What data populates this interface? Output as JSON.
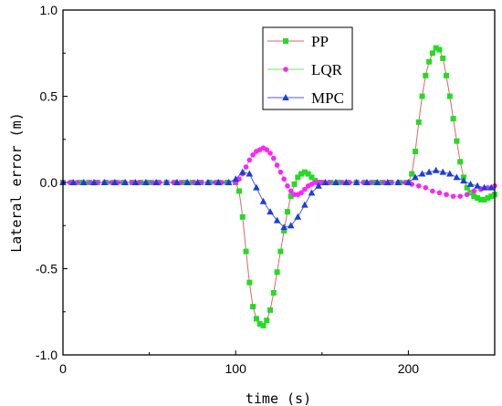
{
  "chart_data": {
    "type": "line",
    "xlabel": "time (s)",
    "ylabel": "Lateral error (m)",
    "xlim": [
      0,
      250
    ],
    "ylim": [
      -1.0,
      1.0
    ],
    "xticks": [
      0,
      100,
      200
    ],
    "xtick_labels": [
      "0",
      "100",
      "200"
    ],
    "yticks": [
      -1.0,
      -0.5,
      0.0,
      0.5,
      1.0
    ],
    "ytick_labels": [
      "-1.0",
      "-0.5",
      "0.0",
      "0.5",
      "1.0"
    ],
    "grid": false,
    "legend_position": "top-center",
    "series": [
      {
        "name": "PP",
        "line_color": "#e06666",
        "marker_color": "#22dd22",
        "marker": "square",
        "x": [
          0,
          5,
          10,
          15,
          20,
          25,
          30,
          35,
          40,
          45,
          50,
          55,
          60,
          65,
          70,
          75,
          80,
          85,
          90,
          95,
          100,
          102,
          104,
          106,
          108,
          110,
          112,
          114,
          116,
          118,
          120,
          122,
          124,
          126,
          128,
          130,
          132,
          134,
          136,
          138,
          140,
          142,
          144,
          146,
          148,
          150,
          155,
          160,
          165,
          170,
          175,
          180,
          185,
          190,
          195,
          200,
          202,
          204,
          206,
          208,
          210,
          212,
          214,
          216,
          218,
          220,
          222,
          224,
          226,
          228,
          230,
          232,
          234,
          236,
          238,
          240,
          242,
          244,
          246,
          248,
          250
        ],
        "y": [
          0,
          0,
          0,
          0,
          0,
          0,
          0,
          0,
          0,
          0,
          0,
          0,
          0,
          0,
          0,
          0,
          0,
          0,
          0,
          0,
          0,
          -0.05,
          -0.2,
          -0.4,
          -0.58,
          -0.72,
          -0.79,
          -0.82,
          -0.83,
          -0.8,
          -0.74,
          -0.64,
          -0.52,
          -0.4,
          -0.28,
          -0.17,
          -0.08,
          -0.01,
          0.03,
          0.05,
          0.06,
          0.05,
          0.03,
          0.01,
          0,
          0,
          0,
          0,
          0,
          0,
          0,
          0,
          0,
          0,
          0,
          0,
          0.05,
          0.18,
          0.35,
          0.5,
          0.62,
          0.7,
          0.75,
          0.78,
          0.77,
          0.72,
          0.62,
          0.5,
          0.37,
          0.24,
          0.12,
          0.03,
          -0.03,
          -0.06,
          -0.08,
          -0.09,
          -0.1,
          -0.1,
          -0.09,
          -0.08,
          -0.07
        ]
      },
      {
        "name": "LQR",
        "line_color": "#66ee66",
        "marker_color": "#ff22ff",
        "marker": "circle",
        "x": [
          0,
          4,
          8,
          12,
          16,
          20,
          24,
          28,
          32,
          36,
          40,
          44,
          48,
          52,
          56,
          60,
          64,
          68,
          72,
          76,
          80,
          84,
          88,
          92,
          96,
          100,
          102,
          104,
          106,
          108,
          110,
          112,
          114,
          116,
          118,
          120,
          122,
          124,
          126,
          128,
          130,
          132,
          134,
          136,
          138,
          140,
          142,
          144,
          146,
          148,
          150,
          154,
          158,
          162,
          166,
          170,
          174,
          178,
          182,
          186,
          190,
          194,
          198,
          202,
          206,
          210,
          214,
          218,
          222,
          226,
          230,
          234,
          238,
          242,
          246,
          250
        ],
        "y": [
          0,
          0,
          0,
          0,
          0,
          0,
          0,
          0,
          0,
          0,
          0,
          0,
          0,
          0,
          0,
          0,
          0,
          0,
          0,
          0,
          0,
          0,
          0,
          0,
          0,
          0,
          0.02,
          0.05,
          0.09,
          0.13,
          0.16,
          0.18,
          0.19,
          0.2,
          0.19,
          0.17,
          0.14,
          0.1,
          0.06,
          0.02,
          -0.02,
          -0.05,
          -0.07,
          -0.07,
          -0.06,
          -0.04,
          -0.02,
          -0.01,
          0,
          0,
          0,
          0,
          0,
          0,
          0,
          0,
          0,
          0,
          0,
          0,
          0,
          0,
          0,
          -0.01,
          -0.02,
          -0.03,
          -0.05,
          -0.06,
          -0.07,
          -0.08,
          -0.08,
          -0.07,
          -0.05,
          -0.04,
          -0.03,
          -0.02
        ]
      },
      {
        "name": "MPC",
        "line_color": "#5555ee",
        "marker_color": "#1a3fd6",
        "marker": "triangle",
        "x": [
          0,
          6,
          12,
          18,
          24,
          30,
          36,
          42,
          48,
          54,
          60,
          66,
          72,
          78,
          84,
          90,
          96,
          100,
          104,
          108,
          112,
          116,
          120,
          124,
          128,
          132,
          136,
          140,
          144,
          148,
          152,
          158,
          164,
          170,
          176,
          182,
          188,
          194,
          200,
          204,
          208,
          212,
          216,
          220,
          224,
          228,
          232,
          236,
          240,
          244,
          248
        ],
        "y": [
          0,
          0,
          0,
          0,
          0,
          0,
          0,
          0,
          0,
          0,
          0,
          0,
          0,
          0,
          0,
          0,
          0,
          0.02,
          0.06,
          0.05,
          -0.03,
          -0.11,
          -0.17,
          -0.22,
          -0.26,
          -0.25,
          -0.2,
          -0.13,
          -0.06,
          -0.02,
          0,
          0,
          0,
          0,
          0,
          0,
          0,
          0,
          0,
          0.03,
          0.05,
          0.06,
          0.07,
          0.06,
          0.05,
          0.03,
          0.01,
          -0.01,
          -0.02,
          -0.03,
          -0.03
        ]
      }
    ]
  }
}
